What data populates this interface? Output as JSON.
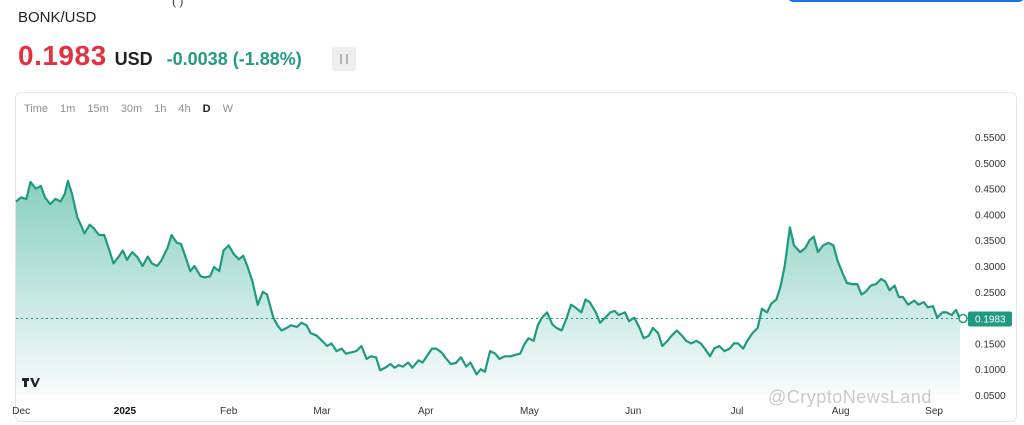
{
  "header": {
    "pair": "BONK/USD",
    "price": "0.1983",
    "currency": "USD",
    "change": "-0.0038 (-1.88%)"
  },
  "timeframes": [
    {
      "label": "Time",
      "active": false
    },
    {
      "label": "1m",
      "active": false
    },
    {
      "label": "15m",
      "active": false
    },
    {
      "label": "30m",
      "active": false
    },
    {
      "label": "1h",
      "active": false
    },
    {
      "label": "4h",
      "active": false
    },
    {
      "label": "D",
      "active": true
    },
    {
      "label": "W",
      "active": false
    }
  ],
  "watermark": "@CryptoNewsLand",
  "colors": {
    "price_red": "#e2323f",
    "change_green": "#239a82",
    "line": "#1f9a80",
    "fill": "#26a88c"
  },
  "chart_data": {
    "type": "area",
    "title": "",
    "xlabel": "",
    "ylabel": "",
    "ylim": [
      0.05,
      0.56
    ],
    "y_ticks": [
      "0.5500",
      "0.5000",
      "0.4500",
      "0.4000",
      "0.3500",
      "0.3000",
      "0.2500",
      "0.2000",
      "0.1500",
      "0.1000",
      "0.0500"
    ],
    "x_ticks": [
      "Dec",
      "2025",
      "Feb",
      "Mar",
      "Apr",
      "May",
      "Jun",
      "Jul",
      "Aug",
      "Sep"
    ],
    "x_tick_pos": [
      0.5,
      10.5,
      20.5,
      29.5,
      39.5,
      49.5,
      59.5,
      69.5,
      79.5,
      88.5
    ],
    "last_price_label": "0.1983",
    "last_price": 0.1983,
    "x_domain": [
      0,
      91
    ],
    "series": [
      {
        "values": [
          [
            0.0,
            0.425
          ],
          [
            0.5,
            0.433
          ],
          [
            1.0,
            0.43
          ],
          [
            1.4,
            0.463
          ],
          [
            1.9,
            0.45
          ],
          [
            2.4,
            0.455
          ],
          [
            2.8,
            0.433
          ],
          [
            3.3,
            0.42
          ],
          [
            3.8,
            0.43
          ],
          [
            4.3,
            0.425
          ],
          [
            4.7,
            0.44
          ],
          [
            5.0,
            0.465
          ],
          [
            5.4,
            0.44
          ],
          [
            5.9,
            0.395
          ],
          [
            6.2,
            0.382
          ],
          [
            6.6,
            0.363
          ],
          [
            7.1,
            0.38
          ],
          [
            7.5,
            0.373
          ],
          [
            8.0,
            0.36
          ],
          [
            8.5,
            0.36
          ],
          [
            9.0,
            0.33
          ],
          [
            9.4,
            0.305
          ],
          [
            9.9,
            0.318
          ],
          [
            10.3,
            0.33
          ],
          [
            10.7,
            0.312
          ],
          [
            11.2,
            0.327
          ],
          [
            11.7,
            0.317
          ],
          [
            12.2,
            0.3
          ],
          [
            12.7,
            0.318
          ],
          [
            13.1,
            0.305
          ],
          [
            13.6,
            0.3
          ],
          [
            14.0,
            0.31
          ],
          [
            14.6,
            0.335
          ],
          [
            15.0,
            0.36
          ],
          [
            15.5,
            0.345
          ],
          [
            15.9,
            0.343
          ],
          [
            16.3,
            0.32
          ],
          [
            16.8,
            0.29
          ],
          [
            17.2,
            0.3
          ],
          [
            17.8,
            0.28
          ],
          [
            18.2,
            0.278
          ],
          [
            18.7,
            0.28
          ],
          [
            19.1,
            0.298
          ],
          [
            19.6,
            0.29
          ],
          [
            20.0,
            0.33
          ],
          [
            20.5,
            0.34
          ],
          [
            21.0,
            0.323
          ],
          [
            21.5,
            0.313
          ],
          [
            21.9,
            0.32
          ],
          [
            22.3,
            0.3
          ],
          [
            22.8,
            0.27
          ],
          [
            23.3,
            0.225
          ],
          [
            23.8,
            0.25
          ],
          [
            24.2,
            0.245
          ],
          [
            24.8,
            0.2
          ],
          [
            25.2,
            0.185
          ],
          [
            25.6,
            0.175
          ],
          [
            26.1,
            0.18
          ],
          [
            26.5,
            0.185
          ],
          [
            27.1,
            0.182
          ],
          [
            27.5,
            0.19
          ],
          [
            28.0,
            0.185
          ],
          [
            28.4,
            0.17
          ],
          [
            29.0,
            0.165
          ],
          [
            29.5,
            0.155
          ],
          [
            30.0,
            0.145
          ],
          [
            30.4,
            0.15
          ],
          [
            30.9,
            0.135
          ],
          [
            31.4,
            0.14
          ],
          [
            31.8,
            0.13
          ],
          [
            32.4,
            0.133
          ],
          [
            32.8,
            0.135
          ],
          [
            33.3,
            0.145
          ],
          [
            33.8,
            0.12
          ],
          [
            34.2,
            0.125
          ],
          [
            34.7,
            0.123
          ],
          [
            35.1,
            0.098
          ],
          [
            35.6,
            0.103
          ],
          [
            36.1,
            0.11
          ],
          [
            36.5,
            0.103
          ],
          [
            36.9,
            0.108
          ],
          [
            37.3,
            0.105
          ],
          [
            37.8,
            0.113
          ],
          [
            38.2,
            0.103
          ],
          [
            38.8,
            0.117
          ],
          [
            39.2,
            0.113
          ],
          [
            39.6,
            0.125
          ],
          [
            40.1,
            0.14
          ],
          [
            40.5,
            0.14
          ],
          [
            41.0,
            0.133
          ],
          [
            41.5,
            0.12
          ],
          [
            41.9,
            0.11
          ],
          [
            42.4,
            0.112
          ],
          [
            42.9,
            0.123
          ],
          [
            43.4,
            0.105
          ],
          [
            43.8,
            0.113
          ],
          [
            44.4,
            0.09
          ],
          [
            44.8,
            0.1
          ],
          [
            45.2,
            0.095
          ],
          [
            45.7,
            0.135
          ],
          [
            46.2,
            0.13
          ],
          [
            46.6,
            0.12
          ],
          [
            47.1,
            0.125
          ],
          [
            47.7,
            0.125
          ],
          [
            48.1,
            0.128
          ],
          [
            48.6,
            0.13
          ],
          [
            49.0,
            0.148
          ],
          [
            49.4,
            0.16
          ],
          [
            49.9,
            0.155
          ],
          [
            50.3,
            0.185
          ],
          [
            50.7,
            0.2
          ],
          [
            51.2,
            0.21
          ],
          [
            51.7,
            0.187
          ],
          [
            52.1,
            0.18
          ],
          [
            52.6,
            0.175
          ],
          [
            53.1,
            0.2
          ],
          [
            53.5,
            0.225
          ],
          [
            53.9,
            0.22
          ],
          [
            54.5,
            0.21
          ],
          [
            54.9,
            0.235
          ],
          [
            55.3,
            0.23
          ],
          [
            55.9,
            0.21
          ],
          [
            56.3,
            0.19
          ],
          [
            56.8,
            0.2
          ],
          [
            57.3,
            0.21
          ],
          [
            57.7,
            0.213
          ],
          [
            58.1,
            0.205
          ],
          [
            58.7,
            0.21
          ],
          [
            59.1,
            0.193
          ],
          [
            59.6,
            0.2
          ],
          [
            60.1,
            0.18
          ],
          [
            60.5,
            0.16
          ],
          [
            61.0,
            0.165
          ],
          [
            61.4,
            0.18
          ],
          [
            61.9,
            0.17
          ],
          [
            62.3,
            0.145
          ],
          [
            62.8,
            0.155
          ],
          [
            63.2,
            0.165
          ],
          [
            63.7,
            0.175
          ],
          [
            64.2,
            0.165
          ],
          [
            64.6,
            0.155
          ],
          [
            65.1,
            0.15
          ],
          [
            65.6,
            0.155
          ],
          [
            66.0,
            0.15
          ],
          [
            66.4,
            0.14
          ],
          [
            66.9,
            0.125
          ],
          [
            67.3,
            0.14
          ],
          [
            67.8,
            0.145
          ],
          [
            68.3,
            0.135
          ],
          [
            68.8,
            0.14
          ],
          [
            69.2,
            0.15
          ],
          [
            69.6,
            0.15
          ],
          [
            70.1,
            0.14
          ],
          [
            70.5,
            0.155
          ],
          [
            71.0,
            0.17
          ],
          [
            71.5,
            0.18
          ],
          [
            71.9,
            0.217
          ],
          [
            72.4,
            0.21
          ],
          [
            72.8,
            0.227
          ],
          [
            73.3,
            0.235
          ],
          [
            73.7,
            0.26
          ],
          [
            74.1,
            0.3
          ],
          [
            74.6,
            0.375
          ],
          [
            75.0,
            0.34
          ],
          [
            75.6,
            0.327
          ],
          [
            76.1,
            0.335
          ],
          [
            76.5,
            0.35
          ],
          [
            76.9,
            0.357
          ],
          [
            77.3,
            0.327
          ],
          [
            77.8,
            0.34
          ],
          [
            78.3,
            0.345
          ],
          [
            78.8,
            0.34
          ],
          [
            79.2,
            0.31
          ],
          [
            79.7,
            0.285
          ],
          [
            80.1,
            0.267
          ],
          [
            80.6,
            0.265
          ],
          [
            81.1,
            0.265
          ],
          [
            81.5,
            0.245
          ],
          [
            81.9,
            0.25
          ],
          [
            82.4,
            0.262
          ],
          [
            82.9,
            0.265
          ],
          [
            83.4,
            0.275
          ],
          [
            83.8,
            0.27
          ],
          [
            84.2,
            0.253
          ],
          [
            84.7,
            0.262
          ],
          [
            85.1,
            0.24
          ],
          [
            85.5,
            0.24
          ],
          [
            86.0,
            0.225
          ],
          [
            86.6,
            0.233
          ],
          [
            87.0,
            0.225
          ],
          [
            87.5,
            0.23
          ],
          [
            87.9,
            0.22
          ],
          [
            88.4,
            0.222
          ],
          [
            88.8,
            0.2
          ],
          [
            89.3,
            0.21
          ],
          [
            89.7,
            0.21
          ],
          [
            90.2,
            0.205
          ],
          [
            90.6,
            0.215
          ],
          [
            91.0,
            0.198
          ]
        ]
      }
    ]
  }
}
